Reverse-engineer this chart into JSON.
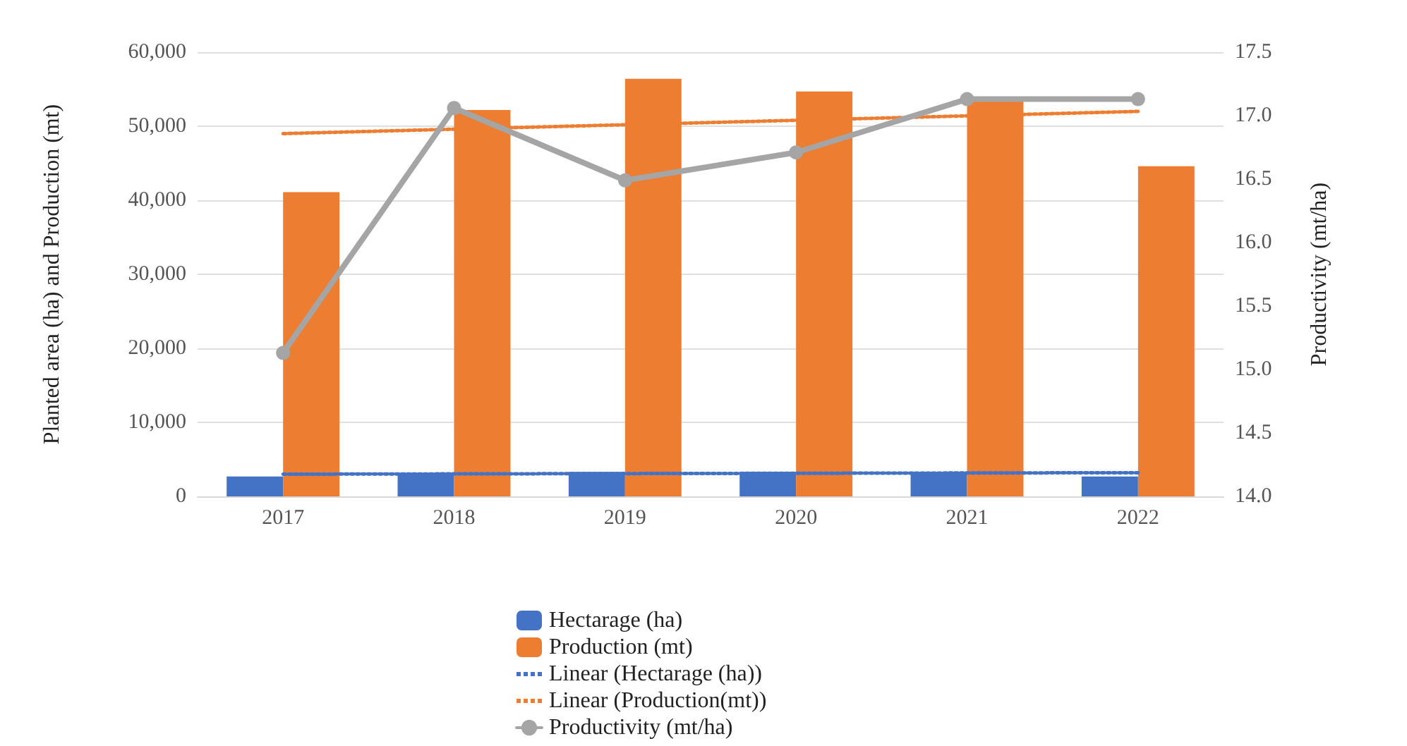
{
  "chart_data": {
    "type": "bar",
    "ylabel": "Planted area (ha) and Production (mt)",
    "y2label": "Productivity (mt/ha)",
    "categories": [
      "2017",
      "2018",
      "2019",
      "2020",
      "2021",
      "2022"
    ],
    "series": [
      {
        "name": "Hectarage (ha)",
        "color": "#4472c4",
        "values": [
          2700,
          3100,
          3300,
          3300,
          3200,
          2700
        ]
      },
      {
        "name": "Production (mt)",
        "color": "#ed7d31",
        "values": [
          41100,
          52200,
          56400,
          54700,
          53500,
          44600
        ]
      },
      {
        "name": "Linear (Hectarage (ha))",
        "type": "line",
        "color": "#4472c4",
        "line_style": "dotted",
        "marker": "none",
        "values": [
          3000,
          3040,
          3080,
          3120,
          3160,
          3200
        ]
      },
      {
        "name": "Linear (Production(mt))",
        "type": "line",
        "color": "#ed7d31",
        "line_style": "dotted",
        "marker": "none",
        "values": [
          49000,
          49600,
          50200,
          50800,
          51400,
          52000
        ]
      },
      {
        "name": "Productivity (mt/ha)",
        "type": "line",
        "axis": "y2",
        "color": "#a5a5a5",
        "line_style": "solid",
        "marker": "circle",
        "values": [
          15.13,
          17.06,
          16.49,
          16.71,
          17.13,
          17.13
        ]
      }
    ],
    "ylim": [
      0,
      60000
    ],
    "yticks": [
      {
        "value": 0,
        "label": "0"
      },
      {
        "value": 10000,
        "label": "10,000"
      },
      {
        "value": 20000,
        "label": "20,000"
      },
      {
        "value": 30000,
        "label": "30,000"
      },
      {
        "value": 40000,
        "label": "40,000"
      },
      {
        "value": 50000,
        "label": "50,000"
      },
      {
        "value": 60000,
        "label": "60,000"
      }
    ],
    "y2lim": [
      14,
      17.5
    ],
    "y2ticks": [
      {
        "value": 14,
        "label": "14.0"
      },
      {
        "value": 14.5,
        "label": "14.5"
      },
      {
        "value": 15,
        "label": "15.0"
      },
      {
        "value": 15.5,
        "label": "15.5"
      },
      {
        "value": 16,
        "label": "16.0"
      },
      {
        "value": 16.5,
        "label": "16.5"
      },
      {
        "value": 17,
        "label": "17.0"
      },
      {
        "value": 17.5,
        "label": "17.5"
      }
    ],
    "grid": "y",
    "legend": "bottom"
  }
}
